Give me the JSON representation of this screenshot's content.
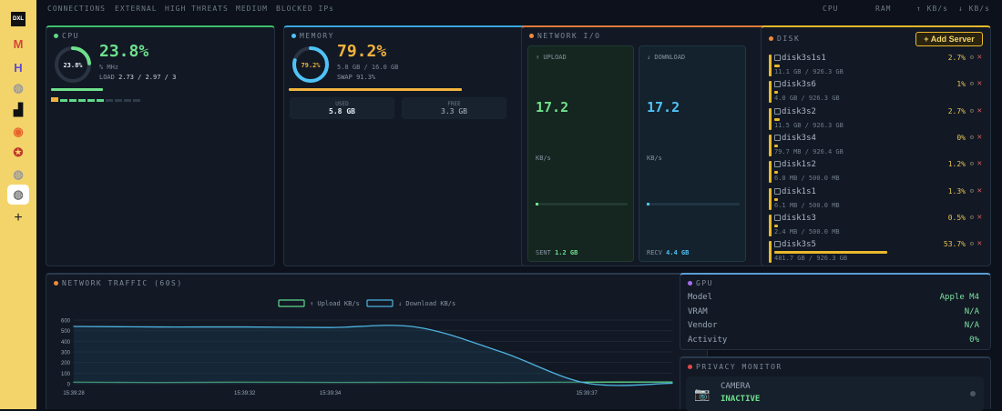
{
  "sidebar": {
    "items": [
      {
        "icon": "dxl-icon",
        "label": "DXL"
      },
      {
        "icon": "gmail-icon",
        "label": "M"
      },
      {
        "icon": "hub-icon",
        "label": "H"
      },
      {
        "icon": "globe-icon",
        "label": "◍"
      },
      {
        "icon": "inbox-icon",
        "label": "▟"
      },
      {
        "icon": "github-icon",
        "label": "◉"
      },
      {
        "icon": "star-badge-icon",
        "label": "✪"
      },
      {
        "icon": "globe-icon-2",
        "label": "◍"
      },
      {
        "icon": "globe-icon-3",
        "label": "◍"
      },
      {
        "icon": "add-icon",
        "label": "+"
      }
    ]
  },
  "nav": {
    "connections": "CONNECTIONS",
    "external": "EXTERNAL",
    "high_threats": "HIGH THREATS",
    "medium": "MEDIUM",
    "blocked": "BLOCKED IPs",
    "cpu": "CPU",
    "ram": "RAM",
    "upload": "↑ KB/s",
    "download": "↓ KB/s"
  },
  "cpu": {
    "title": "CPU",
    "gauge_label": "23.8%",
    "percent": "23.8%",
    "freq": "% MHz",
    "load_label": "LOAD",
    "load_value": "2.73 / 2.97 / 3",
    "usage_fraction": 0.238,
    "color": "#6ee08c"
  },
  "memory": {
    "title": "MEMORY",
    "gauge_label": "79.2%",
    "percent": "79.2%",
    "detail": "5.8 GB / 16.0 GB",
    "swap": "SWAP 91.3%",
    "used_label": "USED",
    "used_value": "5.8 GB",
    "free_label": "FREE",
    "free_value": "3.3 GB",
    "usage_fraction": 0.792,
    "color": "#f2b33d",
    "ring_color": "#4fc3f7"
  },
  "network": {
    "title": "NETWORK I/O",
    "upload_label": "↑ UPLOAD",
    "upload_value": "17.2",
    "upload_unit": "KB/s",
    "download_label": "↓ DOWNLOAD",
    "download_value": "17.2",
    "download_unit": "KB/s",
    "sent_label": "SENT",
    "sent_value": "1.2 GB",
    "recv_label": "RECV",
    "recv_value": "4.4 GB"
  },
  "disk": {
    "title": "DISK",
    "add_server": "+ Add Server",
    "items": [
      {
        "name": "disk3s1s1",
        "pct": "2.7%",
        "size": "11.1 GB / 926.3 GB",
        "frac": 0.027
      },
      {
        "name": "disk3s6",
        "pct": "1%",
        "size": "4.0 GB / 926.3 GB",
        "frac": 0.01
      },
      {
        "name": "disk3s2",
        "pct": "2.7%",
        "size": "11.5 GB / 926.3 GB",
        "frac": 0.027
      },
      {
        "name": "disk3s4",
        "pct": "0%",
        "size": "79.7 MB / 926.4 GB",
        "frac": 0.0
      },
      {
        "name": "disk1s2",
        "pct": "1.2%",
        "size": "6.0 MB / 500.0 MB",
        "frac": 0.012
      },
      {
        "name": "disk1s1",
        "pct": "1.3%",
        "size": "6.1 MB / 500.0 MB",
        "frac": 0.013
      },
      {
        "name": "disk1s3",
        "pct": "0.5%",
        "size": "2.4 MB / 500.0 MB",
        "frac": 0.005
      },
      {
        "name": "disk3s5",
        "pct": "53.7%",
        "size": "481.7 GB / 926.3 GB",
        "frac": 0.537
      }
    ]
  },
  "traffic": {
    "title": "NETWORK TRAFFIC (60S)"
  },
  "chart_data": {
    "type": "line",
    "x": [
      "15:39:28",
      "15:39:30",
      "15:39:32",
      "15:39:34",
      "15:39:35",
      "15:39:36",
      "15:39:37",
      "15:39:38"
    ],
    "xtick_labels": [
      "15:39:28",
      "15:39:32",
      "15:39:34",
      "15:39:37"
    ],
    "series": [
      {
        "name": "Upload KB/s",
        "values": [
          15,
          12,
          15,
          13,
          14,
          12,
          15,
          16
        ],
        "color": "#5fd98a"
      },
      {
        "name": "Download KB/s",
        "values": [
          540,
          535,
          535,
          530,
          535,
          300,
          5,
          5
        ],
        "color": "#4fb3e0"
      }
    ],
    "yticks": [
      0,
      100,
      200,
      300,
      400,
      500,
      600
    ],
    "ylim": [
      0,
      600
    ],
    "legend_position": "top-center"
  },
  "gpu": {
    "title": "GPU",
    "rows": [
      {
        "label": "Model",
        "value": "Apple M4"
      },
      {
        "label": "VRAM",
        "value": "N/A"
      },
      {
        "label": "Vendor",
        "value": "N/A"
      },
      {
        "label": "Activity",
        "value": "0%"
      }
    ]
  },
  "privacy": {
    "title": "PRIVACY MONITOR",
    "camera_label": "CAMERA",
    "camera_status": "INACTIVE"
  }
}
